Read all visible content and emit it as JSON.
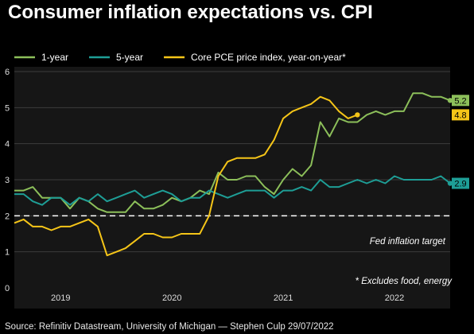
{
  "colors": {
    "background": "#000000",
    "plot_area": "#161616",
    "one_year": "#8cbf5a",
    "five_year": "#1e9e96",
    "core_pce": "#f5c518",
    "target_line": "#ffffff"
  },
  "chart_data": {
    "type": "line",
    "title": "Consumer inflation expectations vs. CPI",
    "x_unit": "month",
    "x_range": [
      "2018-08",
      "2022-07"
    ],
    "ylim": [
      0,
      6
    ],
    "y_ticks": [
      0,
      1,
      2,
      3,
      4,
      5,
      6
    ],
    "x_tick_labels": [
      {
        "label": "2019",
        "date": "2019-01"
      },
      {
        "label": "2020",
        "date": "2020-01"
      },
      {
        "label": "2021",
        "date": "2021-01"
      },
      {
        "label": "2022",
        "date": "2022-01"
      }
    ],
    "legend_position": "top",
    "series": [
      {
        "name": "1-year",
        "color": "#8cbf5a",
        "end_label": "5.2",
        "points": [
          [
            "2018-08",
            2.7
          ],
          [
            "2018-09",
            2.7
          ],
          [
            "2018-10",
            2.8
          ],
          [
            "2018-11",
            2.5
          ],
          [
            "2018-12",
            2.5
          ],
          [
            "2019-01",
            2.5
          ],
          [
            "2019-02",
            2.2
          ],
          [
            "2019-03",
            2.5
          ],
          [
            "2019-04",
            2.4
          ],
          [
            "2019-05",
            2.2
          ],
          [
            "2019-06",
            2.1
          ],
          [
            "2019-07",
            2.1
          ],
          [
            "2019-08",
            2.1
          ],
          [
            "2019-09",
            2.4
          ],
          [
            "2019-10",
            2.2
          ],
          [
            "2019-11",
            2.2
          ],
          [
            "2019-12",
            2.3
          ],
          [
            "2020-01",
            2.5
          ],
          [
            "2020-02",
            2.4
          ],
          [
            "2020-03",
            2.5
          ],
          [
            "2020-04",
            2.7
          ],
          [
            "2020-05",
            2.6
          ],
          [
            "2020-06",
            3.2
          ],
          [
            "2020-07",
            3.0
          ],
          [
            "2020-08",
            3.0
          ],
          [
            "2020-09",
            3.1
          ],
          [
            "2020-10",
            3.1
          ],
          [
            "2020-11",
            2.8
          ],
          [
            "2020-12",
            2.6
          ],
          [
            "2021-01",
            3.0
          ],
          [
            "2021-02",
            3.3
          ],
          [
            "2021-03",
            3.1
          ],
          [
            "2021-04",
            3.4
          ],
          [
            "2021-05",
            4.6
          ],
          [
            "2021-06",
            4.2
          ],
          [
            "2021-07",
            4.7
          ],
          [
            "2021-08",
            4.6
          ],
          [
            "2021-09",
            4.6
          ],
          [
            "2021-10",
            4.8
          ],
          [
            "2021-11",
            4.9
          ],
          [
            "2021-12",
            4.8
          ],
          [
            "2022-01",
            4.9
          ],
          [
            "2022-02",
            4.9
          ],
          [
            "2022-03",
            5.4
          ],
          [
            "2022-04",
            5.4
          ],
          [
            "2022-05",
            5.3
          ],
          [
            "2022-06",
            5.3
          ],
          [
            "2022-07",
            5.2
          ]
        ]
      },
      {
        "name": "5-year",
        "color": "#1e9e96",
        "end_label": "2.9",
        "points": [
          [
            "2018-08",
            2.6
          ],
          [
            "2018-09",
            2.6
          ],
          [
            "2018-10",
            2.4
          ],
          [
            "2018-11",
            2.3
          ],
          [
            "2018-12",
            2.5
          ],
          [
            "2019-01",
            2.5
          ],
          [
            "2019-02",
            2.3
          ],
          [
            "2019-03",
            2.5
          ],
          [
            "2019-04",
            2.4
          ],
          [
            "2019-05",
            2.6
          ],
          [
            "2019-06",
            2.4
          ],
          [
            "2019-07",
            2.5
          ],
          [
            "2019-08",
            2.6
          ],
          [
            "2019-09",
            2.7
          ],
          [
            "2019-10",
            2.5
          ],
          [
            "2019-11",
            2.6
          ],
          [
            "2019-12",
            2.7
          ],
          [
            "2020-01",
            2.6
          ],
          [
            "2020-02",
            2.4
          ],
          [
            "2020-03",
            2.5
          ],
          [
            "2020-04",
            2.5
          ],
          [
            "2020-05",
            2.7
          ],
          [
            "2020-06",
            2.6
          ],
          [
            "2020-07",
            2.5
          ],
          [
            "2020-08",
            2.6
          ],
          [
            "2020-09",
            2.7
          ],
          [
            "2020-10",
            2.7
          ],
          [
            "2020-11",
            2.7
          ],
          [
            "2020-12",
            2.5
          ],
          [
            "2021-01",
            2.7
          ],
          [
            "2021-02",
            2.7
          ],
          [
            "2021-03",
            2.8
          ],
          [
            "2021-04",
            2.7
          ],
          [
            "2021-05",
            3.0
          ],
          [
            "2021-06",
            2.8
          ],
          [
            "2021-07",
            2.8
          ],
          [
            "2021-08",
            2.9
          ],
          [
            "2021-09",
            3.0
          ],
          [
            "2021-10",
            2.9
          ],
          [
            "2021-11",
            3.0
          ],
          [
            "2021-12",
            2.9
          ],
          [
            "2022-01",
            3.1
          ],
          [
            "2022-02",
            3.0
          ],
          [
            "2022-03",
            3.0
          ],
          [
            "2022-04",
            3.0
          ],
          [
            "2022-05",
            3.0
          ],
          [
            "2022-06",
            3.1
          ],
          [
            "2022-07",
            2.9
          ]
        ]
      },
      {
        "name": "Core PCE price index, year-on-year*",
        "color": "#f5c518",
        "end_label": "4.8",
        "points": [
          [
            "2018-08",
            1.8
          ],
          [
            "2018-09",
            1.9
          ],
          [
            "2018-10",
            1.7
          ],
          [
            "2018-11",
            1.7
          ],
          [
            "2018-12",
            1.6
          ],
          [
            "2019-01",
            1.7
          ],
          [
            "2019-02",
            1.7
          ],
          [
            "2019-03",
            1.8
          ],
          [
            "2019-04",
            1.9
          ],
          [
            "2019-05",
            1.7
          ],
          [
            "2019-06",
            0.9
          ],
          [
            "2019-07",
            1.0
          ],
          [
            "2019-08",
            1.1
          ],
          [
            "2019-09",
            1.3
          ],
          [
            "2019-10",
            1.5
          ],
          [
            "2019-11",
            1.5
          ],
          [
            "2019-12",
            1.4
          ],
          [
            "2020-01",
            1.4
          ],
          [
            "2020-02",
            1.5
          ],
          [
            "2020-03",
            1.5
          ],
          [
            "2020-04",
            1.5
          ],
          [
            "2020-05",
            2.0
          ],
          [
            "2020-06",
            3.1
          ],
          [
            "2020-07",
            3.5
          ],
          [
            "2020-08",
            3.6
          ],
          [
            "2020-09",
            3.6
          ],
          [
            "2020-10",
            3.6
          ],
          [
            "2020-11",
            3.7
          ],
          [
            "2020-12",
            4.1
          ],
          [
            "2021-01",
            4.7
          ],
          [
            "2021-02",
            4.9
          ],
          [
            "2021-03",
            5.0
          ],
          [
            "2021-04",
            5.1
          ],
          [
            "2021-05",
            5.3
          ],
          [
            "2021-06",
            5.2
          ],
          [
            "2021-07",
            4.9
          ],
          [
            "2021-08",
            4.7
          ],
          [
            "2021-09",
            4.8
          ]
        ]
      }
    ],
    "reference_line": {
      "label": "Fed inflation target",
      "value": 2
    },
    "annotation": "* Excludes food, energy"
  },
  "source_text": "Source: Refinitiv Datastream, University of Michigan — Stephen Culp 29/07/2022"
}
